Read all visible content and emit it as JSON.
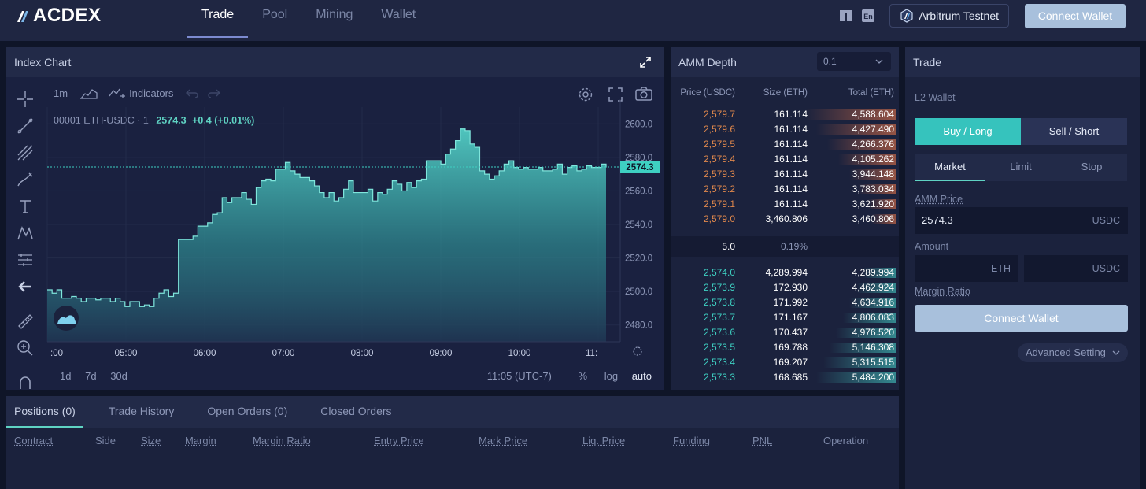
{
  "header": {
    "logo": "ACDEX",
    "nav": [
      "Trade",
      "Pool",
      "Mining",
      "Wallet"
    ],
    "active_nav": "Trade",
    "lang_badge": "En",
    "network": "Arbitrum Testnet",
    "connect_wallet": "Connect Wallet"
  },
  "chart": {
    "panel_title": "Index Chart",
    "interval": "1m",
    "indicators_label": "Indicators",
    "symbol": "00001 ETH-USDC · 1",
    "last": "2574.3",
    "change": "+0.4 (+0.01%)",
    "price_tag": "2574.3",
    "y_ticks": [
      "2600.0",
      "2580.0",
      "2560.0",
      "2540.0",
      "2520.0",
      "2500.0",
      "2480.0"
    ],
    "x_ticks": [
      ":00",
      "05:00",
      "06:00",
      "07:00",
      "08:00",
      "09:00",
      "10:00",
      "11:"
    ],
    "timeframes": [
      "1d",
      "7d",
      "30d"
    ],
    "tz": "11:05 (UTC-7)",
    "scale_opts": [
      "%",
      "log",
      "auto"
    ],
    "colors": {
      "area": "#4cc7c0",
      "line": "#6ee0d6",
      "tag": "#3ed0c2"
    }
  },
  "chart_data": {
    "type": "area",
    "series": [
      {
        "values": [
          2501,
          2499,
          2501,
          2496,
          2496,
          2497,
          2496,
          2494,
          2496,
          2496,
          2495,
          2496,
          2496,
          2494,
          2496,
          2494,
          2491,
          2494,
          2494,
          2491,
          2492,
          2491,
          2496,
          2499,
          2501,
          2497,
          2499,
          2531,
          2531,
          2531,
          2533,
          2539,
          2539,
          2541,
          2546,
          2547,
          2556,
          2553,
          2556,
          2556,
          2559,
          2555,
          2552,
          2562,
          2566,
          2567,
          2566,
          2573,
          2573,
          2577,
          2572,
          2570,
          2568,
          2568,
          2566,
          2563,
          2559,
          2556,
          2559,
          2554,
          2556,
          2561,
          2566,
          2559,
          2559,
          2559,
          2561,
          2554,
          2559,
          2558,
          2561,
          2566,
          2564,
          2560,
          2565,
          2562,
          2566,
          2567,
          2578,
          2578,
          2578,
          2576,
          2582,
          2585,
          2590,
          2597,
          2596,
          2588,
          2586,
          2572,
          2570,
          2567,
          2569,
          2572,
          2576,
          2578,
          2574,
          2573,
          2574,
          2573,
          2573,
          2574,
          2572,
          2572,
          2573,
          2576,
          2570,
          2574,
          2575,
          2572,
          2573,
          2575,
          2574,
          2574,
          2576,
          2574
        ]
      }
    ],
    "ylim": [
      2470,
      2610
    ],
    "x_labels": [
      ":00",
      "05:00",
      "06:00",
      "07:00",
      "08:00",
      "09:00",
      "10:00",
      "11:"
    ]
  },
  "amm": {
    "title": "AMM Depth",
    "precision": "0.1",
    "headers": [
      "Price (USDC)",
      "Size (ETH)",
      "Total (ETH)"
    ],
    "asks": [
      [
        "2,579.7",
        "161.114",
        "4,588.604",
        0.82
      ],
      [
        "2,579.6",
        "161.114",
        "4,427.490",
        0.72
      ],
      [
        "2,579.5",
        "161.114",
        "4,266.376",
        0.62
      ],
      [
        "2,579.4",
        "161.114",
        "4,105.262",
        0.52
      ],
      [
        "2,579.3",
        "161.114",
        "3,944.148",
        0.42
      ],
      [
        "2,579.2",
        "161.114",
        "3,783.034",
        0.34
      ],
      [
        "2,579.1",
        "161.114",
        "3,621.920",
        0.26
      ],
      [
        "2,579.0",
        "3,460.806",
        "3,460.806",
        0.22
      ]
    ],
    "spread_price": "5.0",
    "spread_pct": "0.19%",
    "bids": [
      [
        "2,574.0",
        "4,289.994",
        "4,289.994",
        0.3
      ],
      [
        "2,573.9",
        "172.930",
        "4,462.924",
        0.36
      ],
      [
        "2,573.8",
        "171.992",
        "4,634.916",
        0.42
      ],
      [
        "2,573.7",
        "171.167",
        "4,806.083",
        0.48
      ],
      [
        "2,573.6",
        "170.437",
        "4,976.520",
        0.54
      ],
      [
        "2,573.5",
        "169.788",
        "5,146.308",
        0.6
      ],
      [
        "2,573.4",
        "169.207",
        "5,315.515",
        0.66
      ],
      [
        "2,573.3",
        "168.685",
        "5,484.200",
        0.72
      ]
    ]
  },
  "trade": {
    "title": "Trade",
    "l2_wallet": "L2 Wallet",
    "buy": "Buy / Long",
    "sell": "Sell / Short",
    "order_types": [
      "Market",
      "Limit",
      "Stop"
    ],
    "amm_price_label": "AMM Price",
    "amm_price": "2574.3",
    "amm_price_unit": "USDC",
    "amount_label": "Amount",
    "amount_unit_a": "ETH",
    "amount_unit_b": "USDC",
    "margin_ratio": "Margin Ratio",
    "connect_wallet": "Connect Wallet",
    "advanced": "Advanced Setting"
  },
  "positions": {
    "tabs": [
      "Positions (0)",
      "Trade History",
      "Open Orders (0)",
      "Closed Orders"
    ],
    "columns": [
      "Contract",
      "Side",
      "Size",
      "Margin",
      "Margin Ratio",
      "Entry Price",
      "Mark Price",
      "Liq. Price",
      "Funding",
      "PNL",
      "Operation"
    ]
  }
}
